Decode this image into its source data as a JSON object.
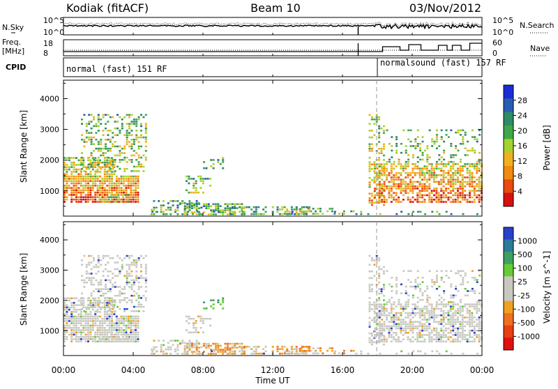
{
  "header": {
    "station": "Kodiak (fitACF)",
    "beam": "Beam 10",
    "date": "03/Nov/2012"
  },
  "top_panel": {
    "left_label": "N.Sky",
    "left_ticks": [
      "10^5",
      "10^0"
    ],
    "right_ticks": [
      "10^5",
      "10^0"
    ],
    "right_label": "N.Search"
  },
  "freq_panel": {
    "left_label_1": "Freq.",
    "left_label_2": "[MHz]",
    "left_ticks": [
      "18",
      "8"
    ],
    "right_ticks": [
      "60",
      "0"
    ],
    "right_label": "Nave"
  },
  "cpid_panel": {
    "label": "CPID",
    "programs": [
      "normal (fast) 151 RF",
      "normalsound (fast) 157 RF"
    ]
  },
  "power_panel": {
    "ylabel": "Slant Range [km]",
    "yticks": [
      "4000",
      "3000",
      "2000",
      "1000"
    ],
    "colorbar_label": "Power [dB]",
    "colorbar_ticks": [
      "28",
      "24",
      "20",
      "16",
      "12",
      "8",
      "4"
    ],
    "colors": [
      "#1a2bd8",
      "#2a5db0",
      "#2f8a66",
      "#3fa64a",
      "#a6d12e",
      "#f0b020",
      "#f08a10",
      "#e84a10",
      "#d81010"
    ]
  },
  "velocity_panel": {
    "ylabel": "Slant Range [km]",
    "yticks": [
      "4000",
      "3000",
      "2000",
      "1000"
    ],
    "colorbar_label": "Velocity [m s^-1]",
    "colorbar_ticks": [
      "1000",
      "500",
      "100",
      "25",
      "-25",
      "-100",
      "-500",
      "-1000"
    ],
    "colors": [
      "#2a40c8",
      "#2e7a9a",
      "#3ea060",
      "#66cc33",
      "#c8c8c0",
      "#c8c8c0",
      "#f0a020",
      "#f07020",
      "#e84010",
      "#e01010"
    ]
  },
  "xaxis": {
    "label": "Time UT",
    "ticks": [
      "00:00",
      "04:00",
      "08:00",
      "12:00",
      "16:00",
      "20:00",
      "00:00"
    ]
  },
  "chart_data": [
    {
      "type": "heatmap",
      "ylabel": "Slant Range [km]",
      "yticks": [
        1000,
        2000,
        3000,
        4000
      ],
      "ylim": [
        180,
        4600
      ],
      "xlabel": "Time UT",
      "xticks": [
        "00:00",
        "04:00",
        "08:00",
        "12:00",
        "16:00",
        "20:00",
        "00:00"
      ],
      "colorbar_label": "Power [dB]",
      "colorbar_range": [
        0,
        30
      ],
      "colorbar_ticks": [
        4,
        8,
        12,
        16,
        20,
        24,
        28
      ]
    },
    {
      "type": "heatmap",
      "ylabel": "Slant Range [km]",
      "yticks": [
        1000,
        2000,
        3000,
        4000
      ],
      "ylim": [
        180,
        4600
      ],
      "xlabel": "Time UT",
      "xticks": [
        "00:00",
        "04:00",
        "08:00",
        "12:00",
        "16:00",
        "20:00",
        "00:00"
      ],
      "colorbar_label": "Velocity [m s^-1]",
      "colorbar_ticks": [
        1000,
        500,
        100,
        25,
        -25,
        -100,
        -500,
        -1000
      ]
    }
  ]
}
